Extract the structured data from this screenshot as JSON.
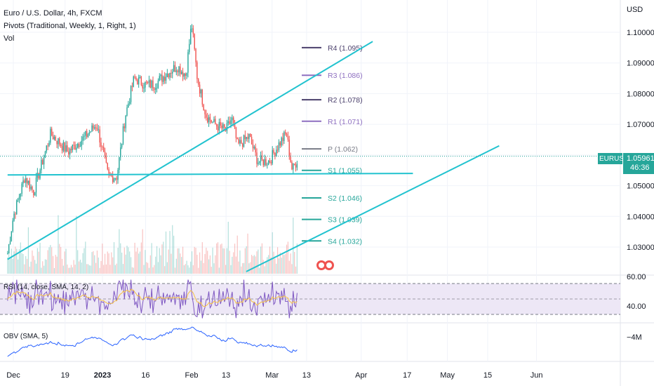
{
  "legend": {
    "title": "Euro / U.S. Dollar, 4h, FXCM",
    "indicator": "Pivots (Traditional, Weekly, 1, Right, 1)",
    "volume": "Vol"
  },
  "price_axis": {
    "currency": "USD",
    "ticks": [
      "1.10000",
      "1.09000",
      "1.08000",
      "1.07000",
      "1.05000",
      "1.04000",
      "1.03000"
    ],
    "symbol_badge": "EURUSD",
    "current_price": "1.05961",
    "countdown": "46:36"
  },
  "time_axis": {
    "ticks": [
      "Dec",
      "19",
      "2023",
      "16",
      "Feb",
      "13",
      "Mar",
      "13",
      "Apr",
      "17",
      "May",
      "15",
      "Jun"
    ]
  },
  "rsi": {
    "label": "RSI (14, close, SMA, 14, 2)",
    "ticks": [
      "60.00",
      "40.00"
    ]
  },
  "obv": {
    "label": "OBV (SMA, 5)",
    "tick": "−4M"
  },
  "colors": {
    "up": "#26a69a",
    "down": "#ef5350",
    "trendline": "#22c3cf",
    "pivot_purple": "#8e6fc0",
    "pivot_dark": "#4a3f6b",
    "pivot_green": "#26a69a",
    "rsi_line": "#7e57c2",
    "rsi_bg": "#ede7f6",
    "obv_line": "#2962ff"
  },
  "chart_data": {
    "type": "candlestick",
    "symbol": "EURUSD",
    "timeframe": "4h",
    "ylim": [
      1.022,
      1.108
    ],
    "anchors": [
      {
        "x": "2022-11-29",
        "y": 1.028
      },
      {
        "x": "2022-12-01",
        "y": 1.04
      },
      {
        "x": "2022-12-05",
        "y": 1.053
      },
      {
        "x": "2022-12-08",
        "y": 1.048
      },
      {
        "x": "2022-12-14",
        "y": 1.067
      },
      {
        "x": "2022-12-20",
        "y": 1.061
      },
      {
        "x": "2022-12-26",
        "y": 1.066
      },
      {
        "x": "2022-12-30",
        "y": 1.07
      },
      {
        "x": "2023-01-03",
        "y": 1.053
      },
      {
        "x": "2023-01-06",
        "y": 1.053
      },
      {
        "x": "2023-01-09",
        "y": 1.073
      },
      {
        "x": "2023-01-12",
        "y": 1.085
      },
      {
        "x": "2023-01-16",
        "y": 1.083
      },
      {
        "x": "2023-01-19",
        "y": 1.083
      },
      {
        "x": "2023-01-24",
        "y": 1.087
      },
      {
        "x": "2023-01-27",
        "y": 1.089
      },
      {
        "x": "2023-01-30",
        "y": 1.086
      },
      {
        "x": "2023-02-01",
        "y": 1.103
      },
      {
        "x": "2023-02-03",
        "y": 1.085
      },
      {
        "x": "2023-02-06",
        "y": 1.073
      },
      {
        "x": "2023-02-09",
        "y": 1.07
      },
      {
        "x": "2023-02-13",
        "y": 1.068
      },
      {
        "x": "2023-02-15",
        "y": 1.072
      },
      {
        "x": "2023-02-17",
        "y": 1.063
      },
      {
        "x": "2023-02-21",
        "y": 1.066
      },
      {
        "x": "2023-02-24",
        "y": 1.058
      },
      {
        "x": "2023-02-28",
        "y": 1.058
      },
      {
        "x": "2023-03-03",
        "y": 1.063
      },
      {
        "x": "2023-03-06",
        "y": 1.067
      },
      {
        "x": "2023-03-08",
        "y": 1.055
      },
      {
        "x": "2023-03-10",
        "y": 1.059
      }
    ],
    "pivots": [
      {
        "label": "R4 (1.095)",
        "value": 1.095
      },
      {
        "label": "R3 (1.086)",
        "value": 1.086
      },
      {
        "label": "R2 (1.078)",
        "value": 1.078
      },
      {
        "label": "R1 (1.071)",
        "value": 1.071
      },
      {
        "label": "P (1.062)",
        "value": 1.062
      },
      {
        "label": "S1 (1.055)",
        "value": 1.055
      },
      {
        "label": "S2 (1.046)",
        "value": 1.046
      },
      {
        "label": "S3 (1.039)",
        "value": 1.039
      },
      {
        "label": "S4 (1.032)",
        "value": 1.032
      }
    ],
    "trendlines": [
      {
        "x1": "2022-11-29",
        "y1": 1.0535,
        "x2": "2023-04-19",
        "y2": 1.054
      },
      {
        "x1": "2022-11-29",
        "y1": 1.026,
        "x2": "2023-04-05",
        "y2": 1.097
      },
      {
        "x1": "2023-02-20",
        "y1": 1.022,
        "x2": "2023-05-19",
        "y2": 1.063
      }
    ]
  }
}
